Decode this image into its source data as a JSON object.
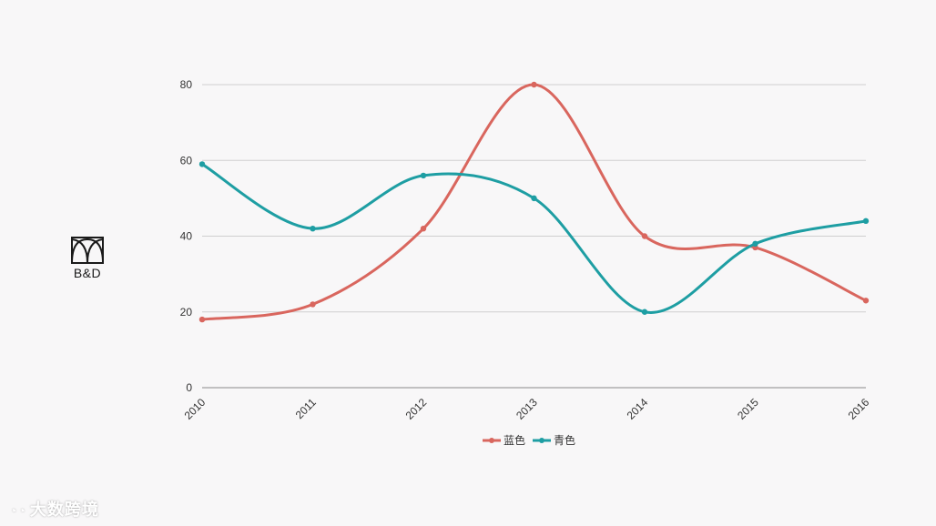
{
  "chart_data": {
    "type": "line",
    "x": [
      "2010",
      "2011",
      "2012",
      "2013",
      "2014",
      "2015",
      "2016"
    ],
    "series": [
      {
        "name": "蓝色",
        "values": [
          18,
          22,
          42,
          80,
          40,
          37,
          23
        ],
        "color": "#d9665e"
      },
      {
        "name": "青色",
        "values": [
          59,
          42,
          56,
          50,
          20,
          38,
          44
        ],
        "color": "#1e9ea3"
      }
    ],
    "ylim": [
      0,
      80
    ],
    "yticks": [
      0,
      20,
      40,
      60,
      80
    ],
    "grid": true,
    "smooth": true,
    "legend": "bottom",
    "title": "",
    "xlabel": "",
    "ylabel": ""
  },
  "logo": {
    "text": "B&D",
    "icon": "arch-logo-icon"
  },
  "watermark": {
    "text": "大数跨境"
  }
}
